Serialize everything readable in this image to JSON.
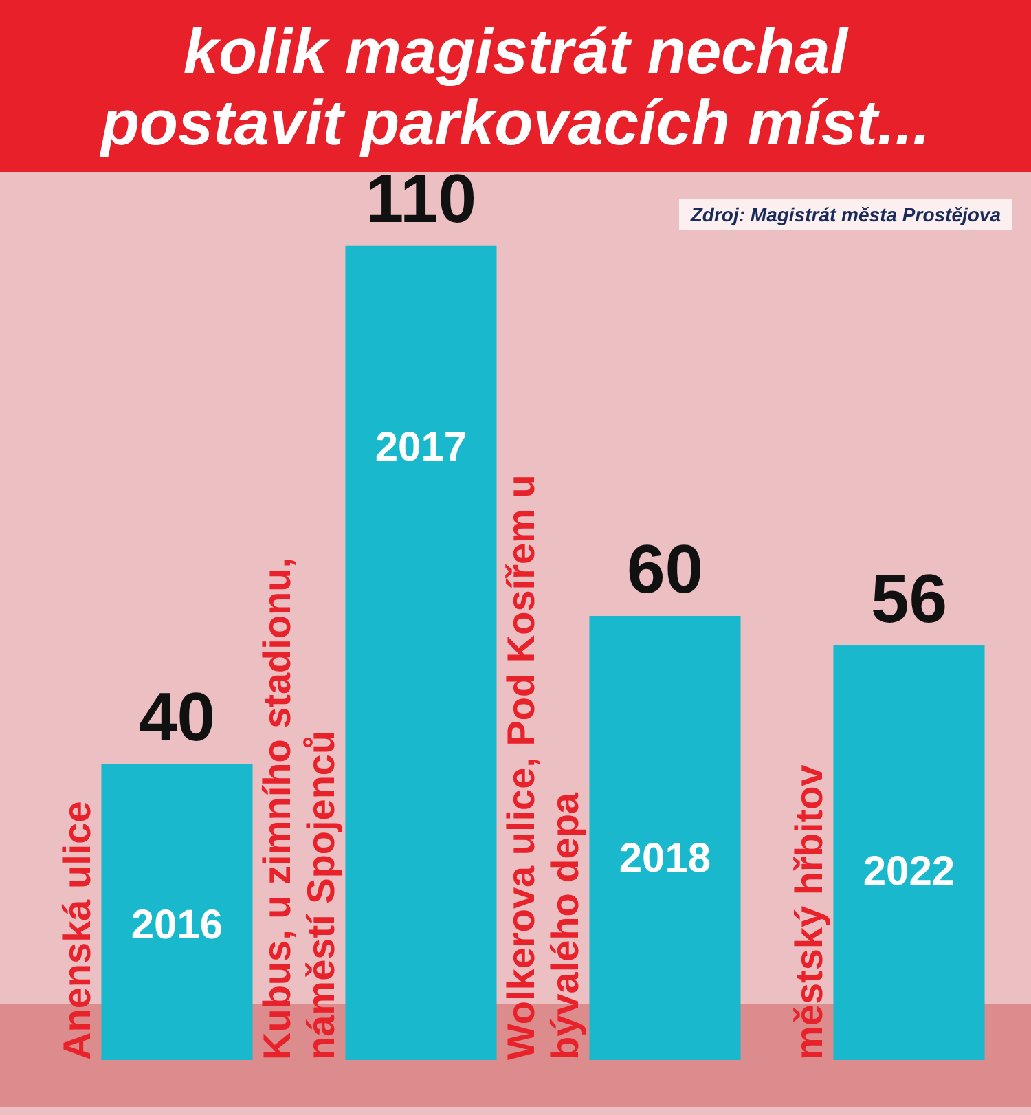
{
  "chart_data": {
    "type": "bar",
    "title": "kolik magistrát nechal postavit parkovacích míst...",
    "categories": [
      "2016",
      "2017",
      "2018",
      "2022"
    ],
    "values": [
      40,
      110,
      60,
      56
    ],
    "color": "#1ab8cc",
    "data_labels": true,
    "annotations": [
      "Zdroj: Magistrát města Prostějova",
      "Anenská ulice",
      "Kubus, u zimního stadionu, náměstí Spojenců",
      "Wolkerova ulice, Pod Kosířem u bývalého depa",
      "městský hřbitov"
    ]
  }
}
